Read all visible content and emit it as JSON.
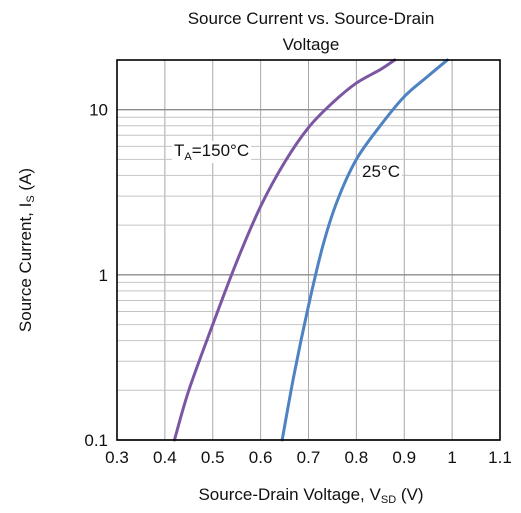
{
  "chart_data": {
    "type": "line",
    "title": "Source Current vs. Source-Drain Voltage",
    "title_lines": [
      "Source Current vs. Source-Drain",
      "Voltage"
    ],
    "xlabel": {
      "main": "Source-Drain Voltage, V",
      "sub": "SD",
      "unit": " (V)"
    },
    "ylabel": {
      "main": "Source Current, I",
      "sub": "S",
      "unit": " (A)"
    },
    "xlim": [
      0.3,
      1.1
    ],
    "ylim": [
      0.1,
      20
    ],
    "yscale": "log",
    "grid": true,
    "x_ticks": [
      "0.3",
      "0.4",
      "0.5",
      "0.6",
      "0.7",
      "0.8",
      "0.9",
      "1",
      "1.1"
    ],
    "y_ticks": [
      "0.1",
      "1",
      "10"
    ],
    "series": [
      {
        "label": {
          "main": "T",
          "sub": "A",
          "rest": "=150°C"
        },
        "color": "#7b57a3",
        "points": [
          [
            0.42,
            0.1
          ],
          [
            0.45,
            0.2
          ],
          [
            0.5,
            0.5
          ],
          [
            0.55,
            1.2
          ],
          [
            0.6,
            2.6
          ],
          [
            0.65,
            4.8
          ],
          [
            0.7,
            7.8
          ],
          [
            0.75,
            11.0
          ],
          [
            0.8,
            14.5
          ],
          [
            0.85,
            17.5
          ],
          [
            0.88,
            20.0
          ]
        ]
      },
      {
        "label": {
          "main": "25°C",
          "sub": "",
          "rest": ""
        },
        "color": "#4d82c3",
        "points": [
          [
            0.645,
            0.1
          ],
          [
            0.67,
            0.25
          ],
          [
            0.7,
            0.65
          ],
          [
            0.73,
            1.5
          ],
          [
            0.76,
            2.8
          ],
          [
            0.8,
            5.0
          ],
          [
            0.85,
            8.0
          ],
          [
            0.9,
            12.0
          ],
          [
            0.95,
            16.0
          ],
          [
            0.99,
            20.0
          ]
        ]
      }
    ]
  }
}
